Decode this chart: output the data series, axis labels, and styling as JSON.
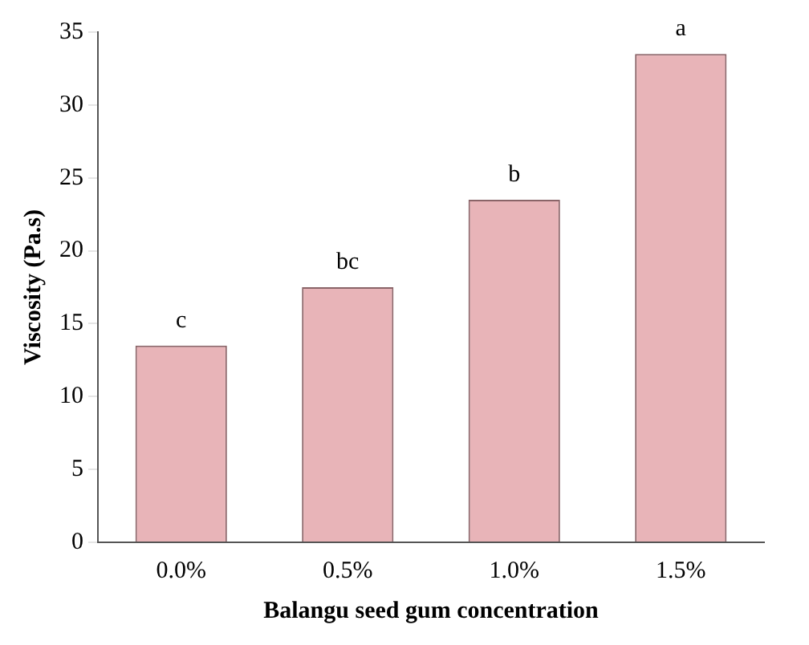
{
  "chart_data": {
    "type": "bar",
    "xlabel": "Balangu seed gum concentration",
    "ylabel": "Viscosity (Pa.s)",
    "categories": [
      "0.0%",
      "0.5%",
      "1.0%",
      "1.5%"
    ],
    "values": [
      13.5,
      17.5,
      23.5,
      33.5
    ],
    "color": "#e8b4b8",
    "ylim": [
      0,
      35
    ],
    "yticks": [
      0,
      5,
      10,
      15,
      20,
      25,
      30,
      35
    ],
    "grid": false,
    "legend": false,
    "annotations": [
      {
        "text": "c",
        "x": "0.0%",
        "y": 13.5
      },
      {
        "text": "bc",
        "x": "0.5%",
        "y": 17.5
      },
      {
        "text": "b",
        "x": "1.0%",
        "y": 23.5
      },
      {
        "text": "a",
        "x": "1.5%",
        "y": 33.5
      }
    ]
  }
}
